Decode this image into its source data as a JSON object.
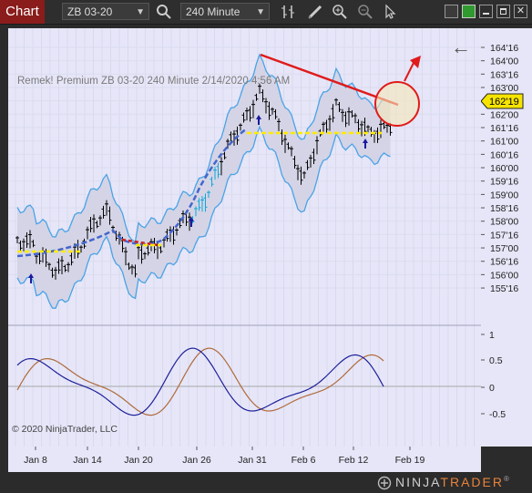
{
  "toolbar": {
    "chart_tab": "Chart",
    "instrument": "ZB 03-20",
    "interval": "240 Minute",
    "icons": [
      "search-icon",
      "bars-icon",
      "pencil-icon",
      "zoom-in-icon",
      "zoom-out-icon",
      "pointer-icon"
    ],
    "window_buttons": [
      "restore-icon",
      "theme-icon",
      "minimize-icon",
      "maximize-icon",
      "close-icon"
    ]
  },
  "chart": {
    "label": "Remek!  Premium  ZB 03-20  240 Minute  2/14/2020 4:56 AM",
    "copyright": "© 2020 NinjaTrader, LLC",
    "current_price": "162'19",
    "back_arrow": "←"
  },
  "price_axis": [
    "164'16",
    "164'00",
    "163'16",
    "163'00",
    "162'16",
    "162'00",
    "161'16",
    "161'00",
    "160'16",
    "160'00",
    "159'16",
    "159'00",
    "158'16",
    "158'00",
    "157'16",
    "157'00",
    "156'16",
    "156'00",
    "155'16"
  ],
  "osc_axis": [
    "1",
    "0.5",
    "0",
    "-0.5"
  ],
  "time_axis": [
    "Jan 8",
    "Jan 14",
    "Jan 20",
    "Jan 26",
    "Jan 31",
    "Feb 6",
    "Feb 12",
    "Feb 19"
  ],
  "brand": {
    "ninja": "NINJA",
    "trader": "TRADER",
    "reg": "®"
  },
  "colors": {
    "background": "#e6e6f8",
    "band": "#4aa3e6",
    "trend": "#e01b1b",
    "support": "#ffeb00",
    "trail": "#4466cc",
    "osc_fast": "#1f1f9a",
    "osc_slow": "#b06a3a"
  },
  "chart_data": {
    "type": "ohlc",
    "price_range": [
      "155'08",
      "164'24"
    ],
    "osc_range": [
      -0.8,
      1.1
    ],
    "series": [
      {
        "name": "",
        "values": []
      }
    ]
  }
}
